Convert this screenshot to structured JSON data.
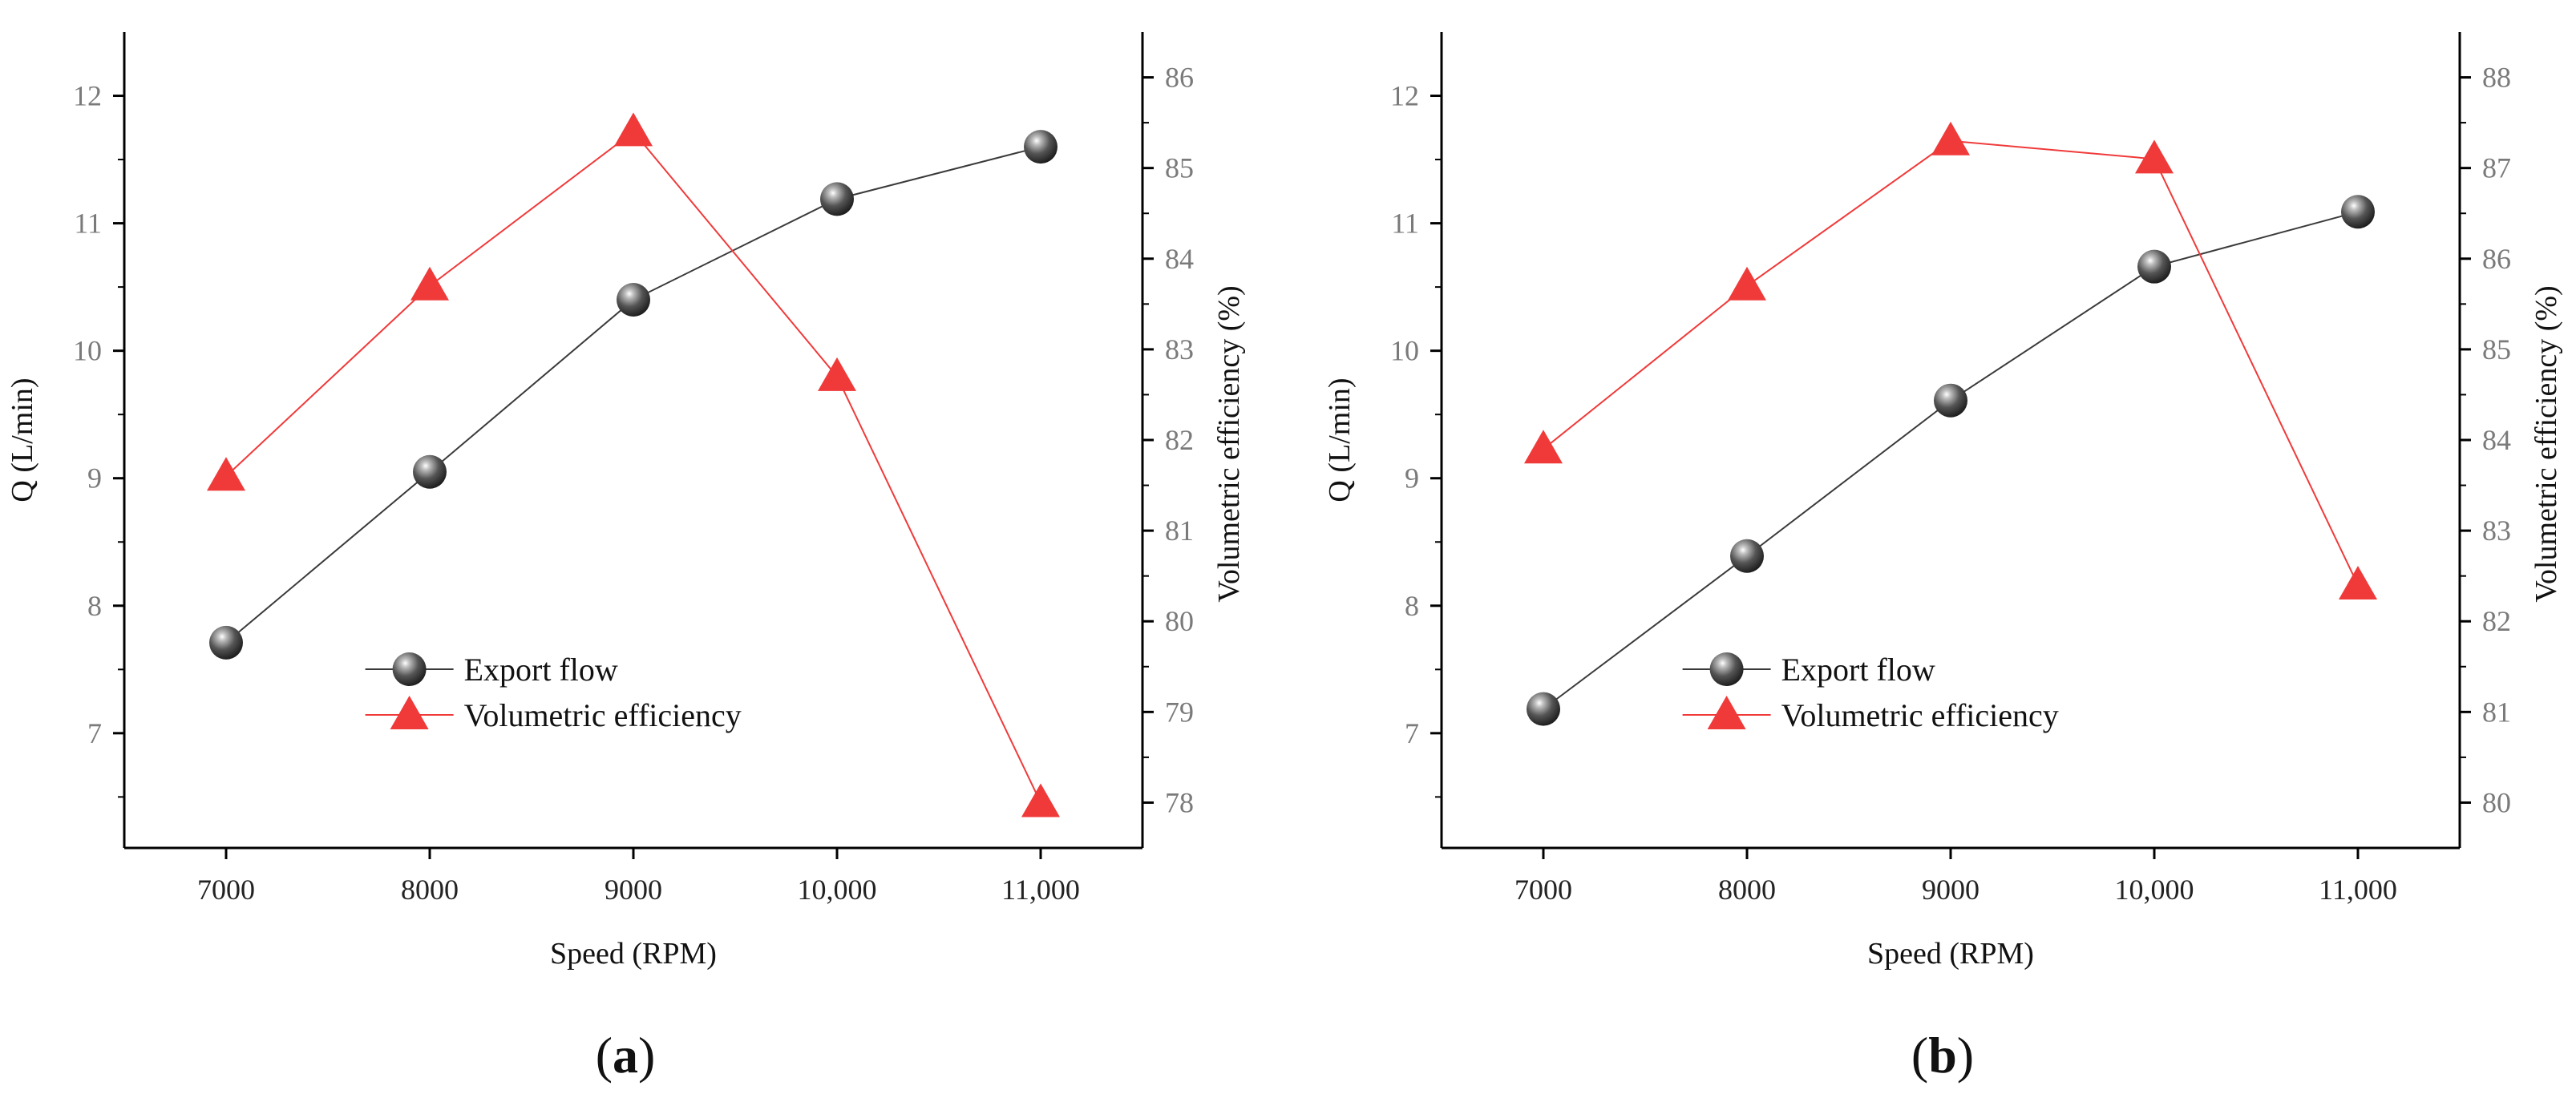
{
  "figure": {
    "panels": [
      {
        "id": "a",
        "label_letter": "a",
        "open": "(",
        "close": ")"
      },
      {
        "id": "b",
        "label_letter": "b",
        "open": "(",
        "close": ")"
      }
    ]
  },
  "colors": {
    "flow": "#3a3a3a",
    "efficiency": "#f03a3a",
    "axis": "#000000",
    "tick_text": "#7a7a7a"
  },
  "chart_data": [
    {
      "type": "line",
      "panel": "a",
      "xlabel": "Speed (RPM)",
      "ylabel": "Q (L/min)",
      "y2label": "Volumetric efficiency (%)",
      "xlim": [
        6500,
        11500
      ],
      "ylim": [
        6.1,
        12.5
      ],
      "y2lim": [
        77.5,
        86.5
      ],
      "x_ticks": [
        7000,
        8000,
        9000,
        10000,
        11000
      ],
      "x_tick_labels": [
        "7000",
        "8000",
        "9000",
        "10,000",
        "11,000"
      ],
      "y_ticks": [
        7,
        8,
        9,
        10,
        11,
        12
      ],
      "y_tick_labels": [
        "7",
        "8",
        "9",
        "10",
        "11",
        "12"
      ],
      "y2_ticks": [
        78,
        79,
        80,
        81,
        82,
        83,
        84,
        85,
        86
      ],
      "y2_tick_labels": [
        "78",
        "79",
        "80",
        "81",
        "82",
        "83",
        "84",
        "85",
        "86"
      ],
      "legend": [
        "Export flow",
        "Volumetric efficiency"
      ],
      "legend_position": "bottom-center",
      "series": [
        {
          "name": "Export flow",
          "axis": "left",
          "marker": "sphere",
          "x": [
            7000,
            8000,
            9000,
            10000,
            11000
          ],
          "values": [
            7.71,
            9.05,
            10.4,
            11.19,
            11.6
          ]
        },
        {
          "name": "Volumetric efficiency",
          "axis": "right",
          "marker": "triangle",
          "x": [
            7000,
            8000,
            9000,
            10000,
            11000
          ],
          "values": [
            81.6,
            83.7,
            85.4,
            82.7,
            78.0
          ]
        }
      ]
    },
    {
      "type": "line",
      "panel": "b",
      "xlabel": "Speed (RPM)",
      "ylabel": "Q (L/min)",
      "y2label": "Volumetric efficiency (%)",
      "xlim": [
        6500,
        11500
      ],
      "ylim": [
        6.1,
        12.5
      ],
      "y2lim": [
        79.5,
        88.5
      ],
      "x_ticks": [
        7000,
        8000,
        9000,
        10000,
        11000
      ],
      "x_tick_labels": [
        "7000",
        "8000",
        "9000",
        "10,000",
        "11,000"
      ],
      "y_ticks": [
        7,
        8,
        9,
        10,
        11,
        12
      ],
      "y_tick_labels": [
        "7",
        "8",
        "9",
        "10",
        "11",
        "12"
      ],
      "y2_ticks": [
        80,
        81,
        82,
        83,
        84,
        85,
        86,
        87,
        88
      ],
      "y2_tick_labels": [
        "80",
        "81",
        "82",
        "83",
        "84",
        "85",
        "86",
        "87",
        "88"
      ],
      "legend": [
        "Export flow",
        "Volumetric efficiency"
      ],
      "legend_position": "bottom-center",
      "series": [
        {
          "name": "Export flow",
          "axis": "left",
          "marker": "sphere",
          "x": [
            7000,
            8000,
            9000,
            10000,
            11000
          ],
          "values": [
            7.19,
            8.39,
            9.61,
            10.66,
            11.09
          ]
        },
        {
          "name": "Volumetric efficiency",
          "axis": "right",
          "marker": "triangle",
          "x": [
            7000,
            8000,
            9000,
            10000,
            11000
          ],
          "values": [
            83.9,
            85.7,
            87.3,
            87.1,
            82.4
          ]
        }
      ]
    }
  ]
}
